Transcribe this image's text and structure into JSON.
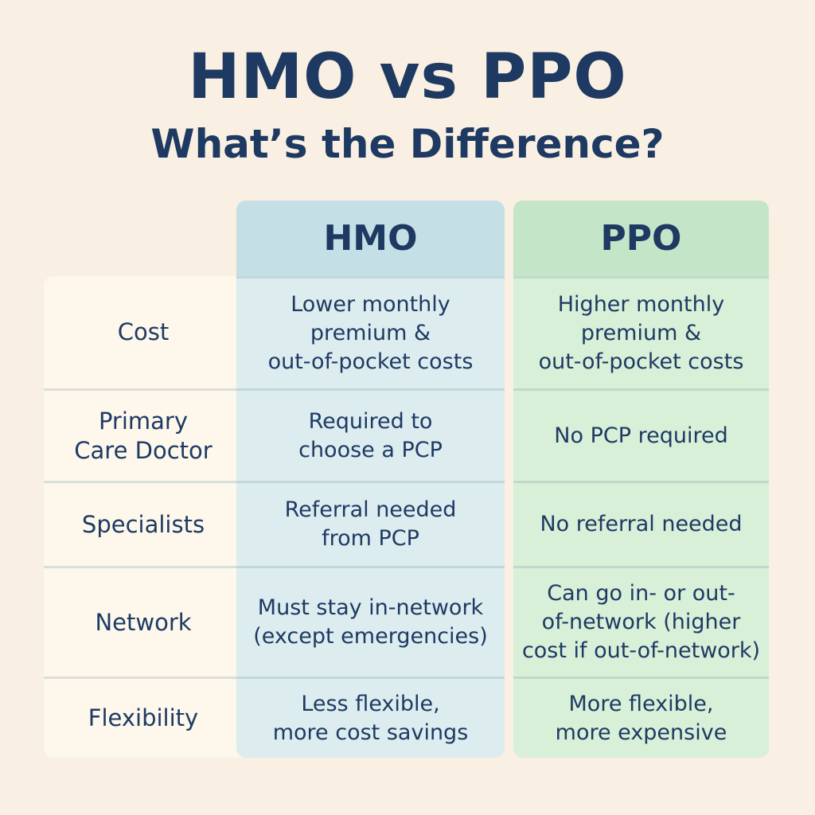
{
  "title": "HMO vs PPO",
  "subtitle": "What’s the Difference?",
  "columns": {
    "hmo": "HMO",
    "ppo": "PPO"
  },
  "colors": {
    "text": "#1e3a63",
    "background": "#f9efe2",
    "hmo_header": "#c4dfe5",
    "hmo_body": "#dcecef",
    "ppo_header": "#c4e5c8",
    "ppo_body": "#d8efd8"
  },
  "rows": [
    {
      "label": "Cost",
      "hmo": "Lower monthly\npremium &\nout-of-pocket costs",
      "ppo": "Higher monthly\npremium &\nout-of-pocket costs"
    },
    {
      "label": "Primary\nCare Doctor",
      "hmo": "Required to\nchoose a PCP",
      "ppo": "No PCP required"
    },
    {
      "label": "Specialists",
      "hmo": "Referral needed\nfrom PCP",
      "ppo": "No referral needed"
    },
    {
      "label": "Network",
      "hmo": "Must stay in-network\n(except emergencies)",
      "ppo": "Can go in- or out-\nof-network (higher\ncost if out-of-network)"
    },
    {
      "label": "Flexibility",
      "hmo": "Less flexible,\nmore cost savings",
      "ppo": "More flexible,\nmore expensive"
    }
  ]
}
